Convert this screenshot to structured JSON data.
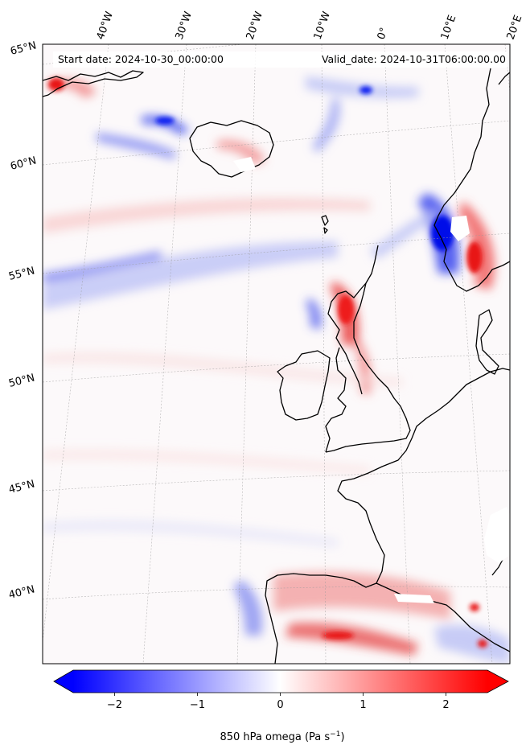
{
  "header": {
    "start_date": "Start date: 2024-10-30_00:00:00",
    "valid_date": "Valid_date: 2024-10-31T06:00:00.00"
  },
  "map": {
    "projection": "Lambert conformal, North Atlantic / Western Europe",
    "lon_labels": [
      "40°W",
      "30°W",
      "20°W",
      "10°W",
      "0°",
      "10°E",
      "20°E"
    ],
    "lat_labels": [
      "65°N",
      "60°N",
      "55°N",
      "50°N",
      "45°N",
      "40°N"
    ],
    "gridlines": true
  },
  "colorbar": {
    "ticks": [
      "−2",
      "−1",
      "0",
      "1",
      "2"
    ],
    "tick_values": [
      -2,
      -1,
      0,
      1,
      2
    ],
    "range": [
      -2.5,
      2.5
    ],
    "colormap": "bwr",
    "extend": "both",
    "label": "850 hPa omega (Pa s",
    "label_sup": "−1",
    "label_end": ")",
    "colors": {
      "negative": "#0000ff",
      "zero": "#ffffff",
      "positive": "#ff0000"
    }
  }
}
